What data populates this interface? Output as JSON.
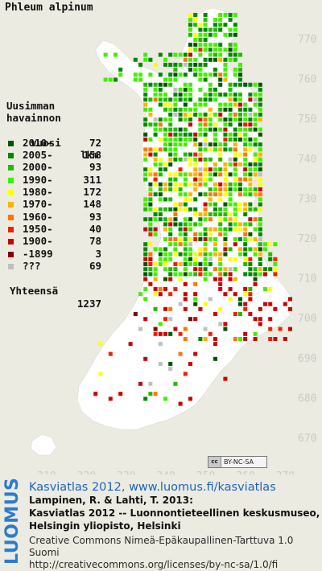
{
  "title": "Phleum alpinum",
  "legend": {
    "heading": [
      "Uusimman",
      "havainnon",
      "vuosi"
    ],
    "count_header": "lkm",
    "rows": [
      {
        "period": "2010-",
        "count": "72",
        "color": "#005500"
      },
      {
        "period": "2005-",
        "count": "158",
        "color": "#008800"
      },
      {
        "period": "2000-",
        "count": "93",
        "color": "#22bb00"
      },
      {
        "period": "1990-",
        "count": "311",
        "color": "#44ee00"
      },
      {
        "period": "1980-",
        "count": "172",
        "color": "#ffff00"
      },
      {
        "period": "1970-",
        "count": "148",
        "color": "#ffb300"
      },
      {
        "period": "1960-",
        "count": "93",
        "color": "#ff7700"
      },
      {
        "period": "1950-",
        "count": "40",
        "color": "#ee2200"
      },
      {
        "period": "1900-",
        "count": "78",
        "color": "#cc0000"
      },
      {
        "period": "-1899",
        "count": "3",
        "color": "#880000"
      },
      {
        "period": "???",
        "count": "69",
        "color": "#c0c0c0"
      }
    ],
    "total_label": "Yhteensä",
    "total_value": "1237"
  },
  "axis": {
    "y_ticks": [
      "770",
      "760",
      "750",
      "740",
      "730",
      "720",
      "710",
      "700",
      "690",
      "680",
      "670"
    ],
    "x_ticks": [
      "310",
      "320",
      "330",
      "340",
      "350",
      "360",
      "370"
    ]
  },
  "license_badge": {
    "logo": "cc",
    "text": "BY-NC-SA"
  },
  "credits": {
    "main": "Kasviatlas 2012, www.luomus.fi/kasviatlas",
    "lines": [
      "Lampinen, R. & Lahti, T. 2013:",
      "Kasviatlas 2012 -- Luonnontieteellinen keskusmuseo,",
      "Helsingin yliopisto, Helsinki"
    ],
    "license": [
      "Creative Commons Nimeä-Epäkaupallinen-Tarttuva 1.0 Suomi",
      "http://creativecommons.org/licenses/by-nc-sa/1.0/fi"
    ]
  },
  "brand": "LUOMUS",
  "colors": {
    "background": "#ecebe1",
    "land": "#ffffff",
    "brand_blue": "#2b7bd0",
    "grid_label": "#c9c9c9"
  }
}
